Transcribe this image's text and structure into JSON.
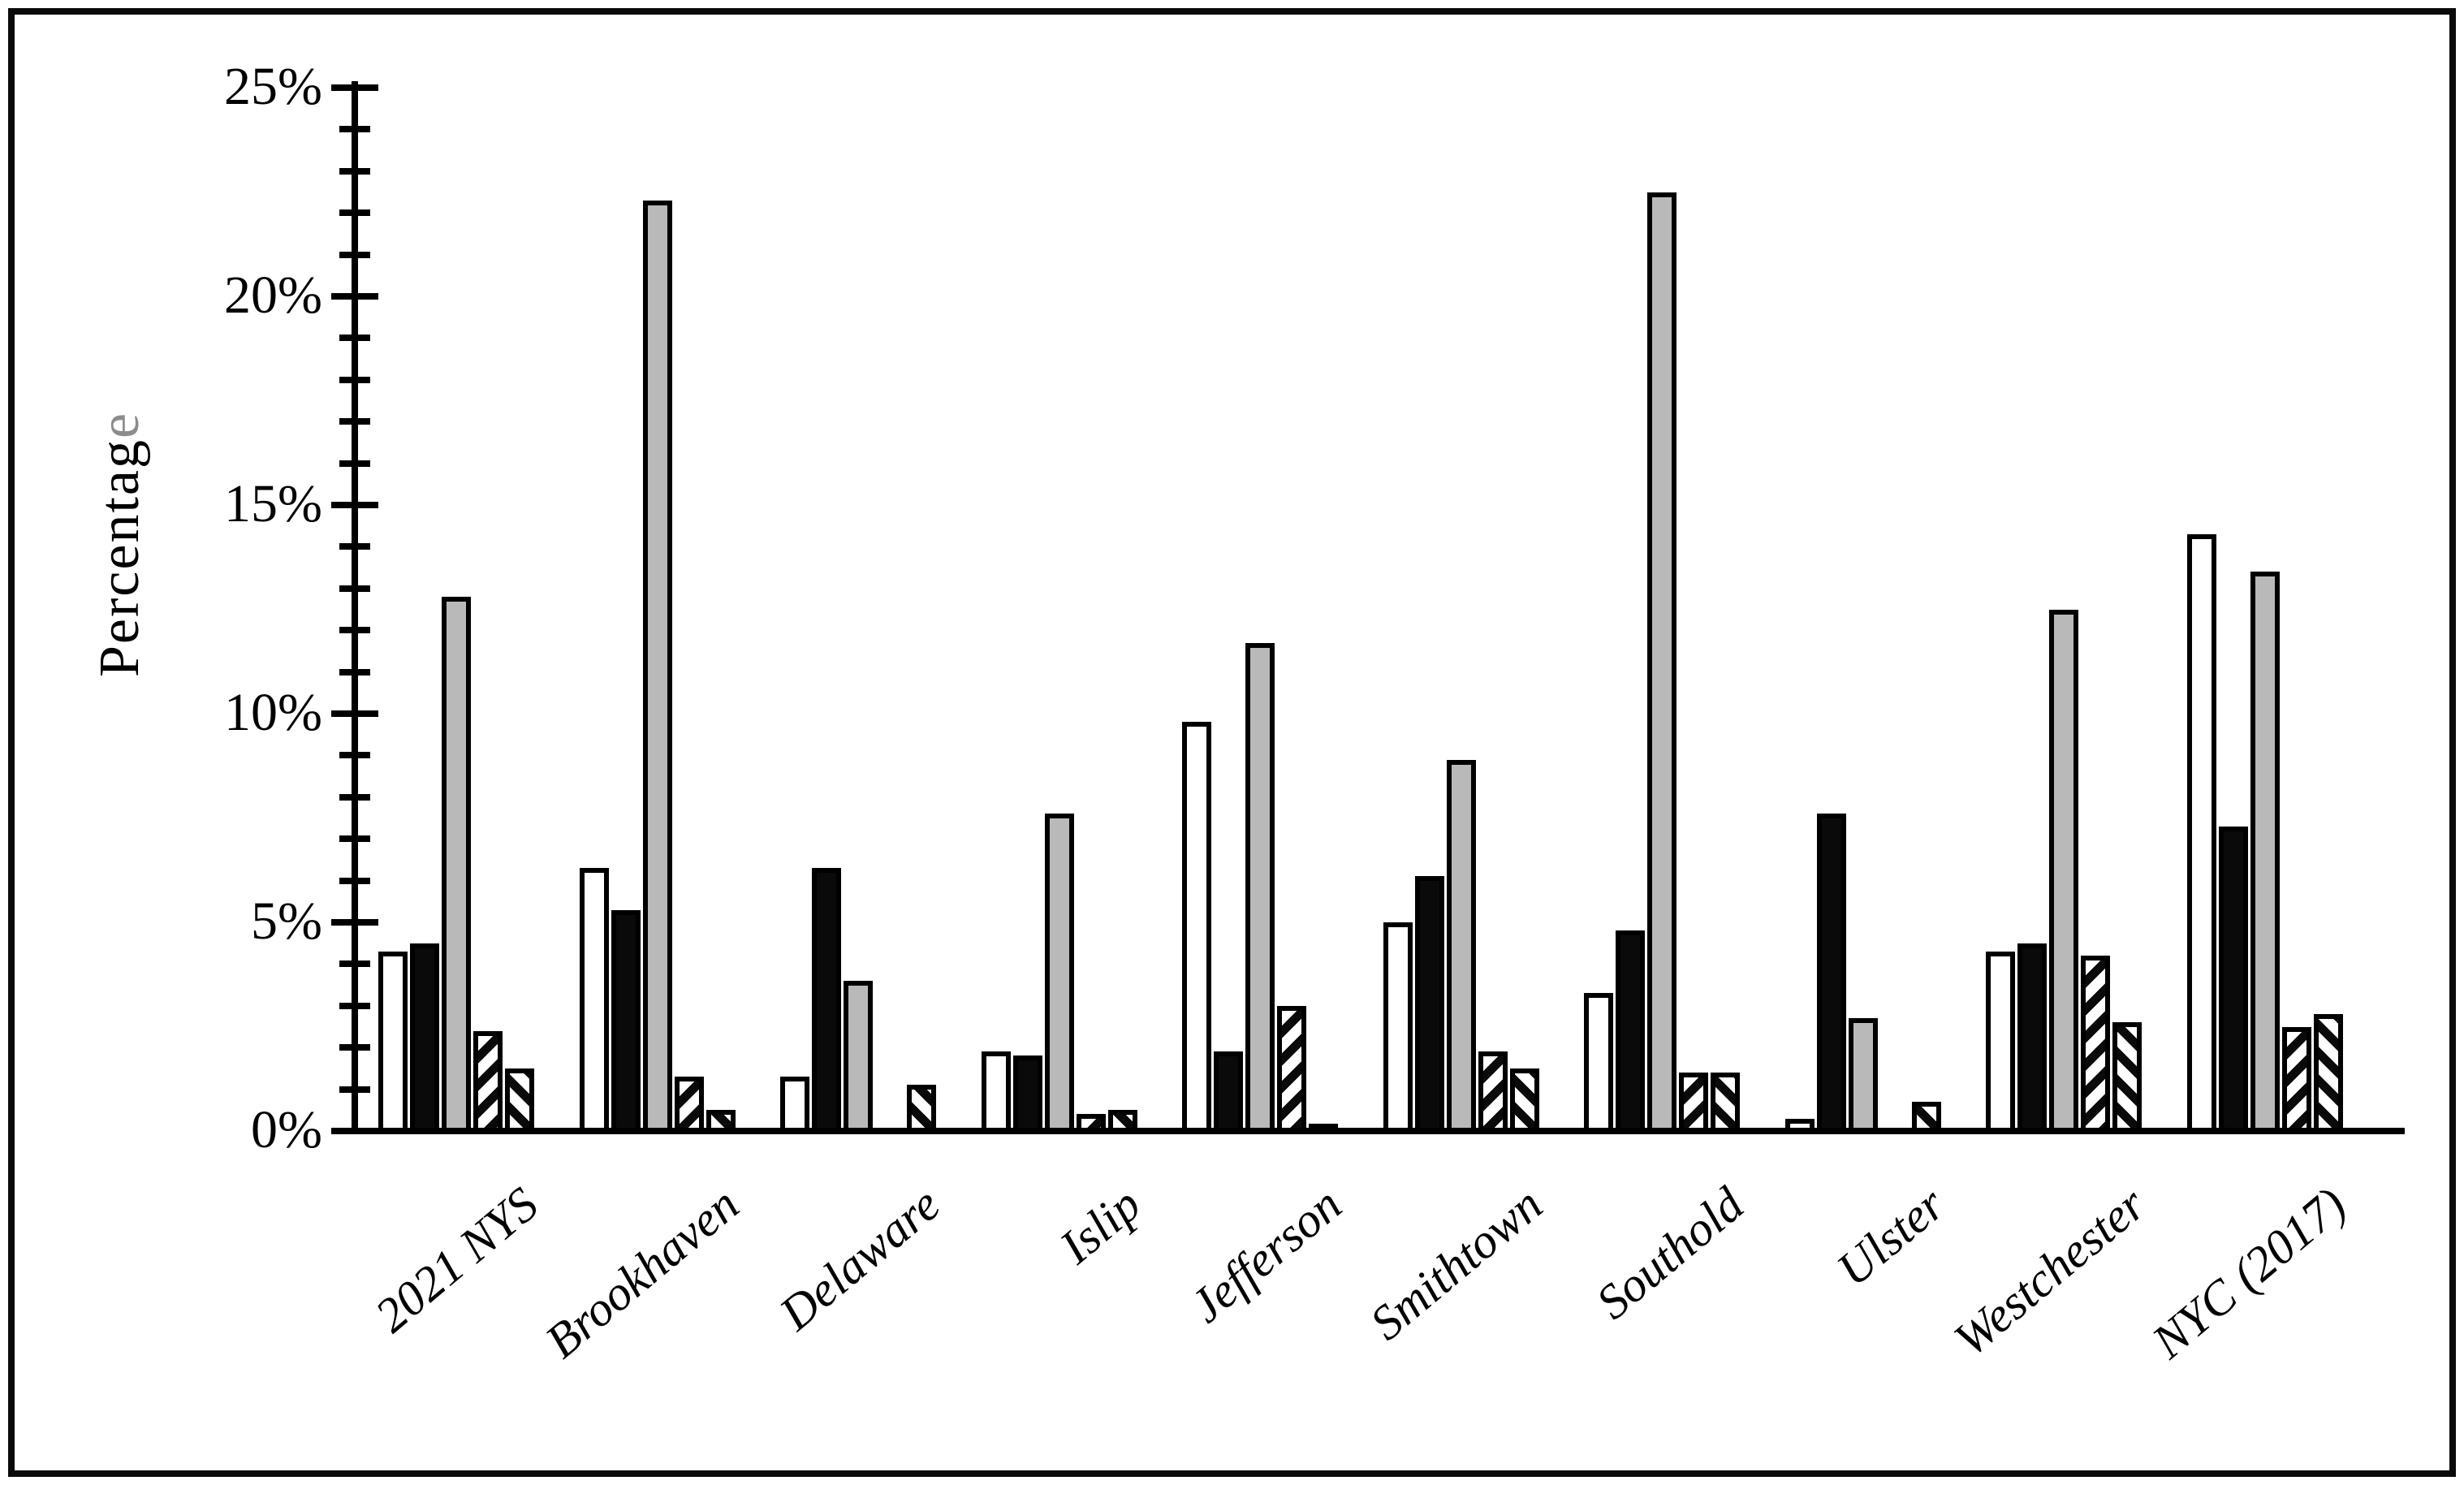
{
  "chart_data": {
    "type": "bar",
    "title": "",
    "ylabel": "Percentage",
    "ylabel_last_char_color": "#8c8c8c",
    "xlabel": "",
    "ylim": [
      0,
      25
    ],
    "ytick_major_labels": [
      "0%",
      "5%",
      "10%",
      "15%",
      "20%",
      "25%"
    ],
    "ytick_major_step": 5,
    "ytick_minor_step": 1,
    "grid": false,
    "legend": "none",
    "categories": [
      "2021 NYS",
      "Brookhaven",
      "Delaware",
      "Islip",
      "Jefferson",
      "Smithtown",
      "Southold",
      "Ulster",
      "Westchester",
      "NYC (2017)"
    ],
    "series": [
      {
        "name": "series-1-open",
        "pattern": "solid",
        "fill": "#ffffff",
        "stripe": null,
        "values": [
          4.3,
          6.3,
          1.3,
          1.9,
          9.8,
          5.0,
          3.3,
          0.3,
          4.3,
          14.3
        ]
      },
      {
        "name": "series-2-black",
        "pattern": "solid",
        "fill": "#0a0a0a",
        "stripe": null,
        "values": [
          4.5,
          5.3,
          6.3,
          1.8,
          1.9,
          6.1,
          4.8,
          7.6,
          4.5,
          7.3
        ]
      },
      {
        "name": "series-3-gray",
        "pattern": "solid",
        "fill": "#b9b9b9",
        "stripe": null,
        "values": [
          12.8,
          22.3,
          3.6,
          7.6,
          11.7,
          8.9,
          22.5,
          2.7,
          12.5,
          13.4
        ]
      },
      {
        "name": "series-4-hatch-up",
        "pattern": "diagonal-up",
        "fill": "#ffffff",
        "stripe": "#0a0a0a",
        "values": [
          2.4,
          1.3,
          0,
          0.4,
          3.0,
          1.9,
          1.4,
          0,
          4.2,
          2.5
        ]
      },
      {
        "name": "series-5-hatch-down",
        "pattern": "diagonal-down",
        "fill": "#ffffff",
        "stripe": "#0a0a0a",
        "values": [
          1.5,
          0.5,
          1.1,
          0.5,
          0.15,
          1.5,
          1.4,
          0.7,
          2.6,
          2.8
        ]
      }
    ],
    "axis_color": "#000000",
    "background_color": "#ffffff"
  }
}
